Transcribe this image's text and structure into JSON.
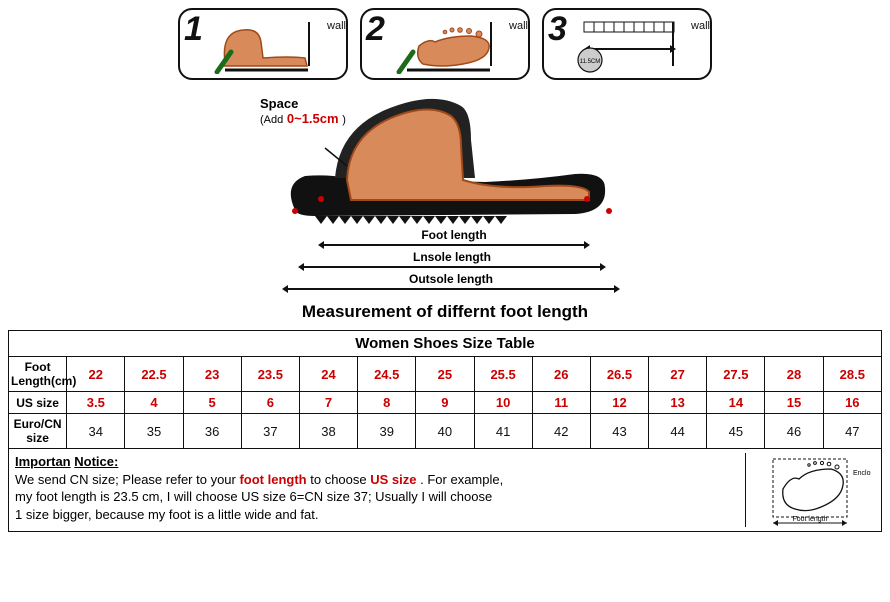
{
  "steps": {
    "step1_num": "1",
    "step2_num": "2",
    "step3_num": "3",
    "wall_label": "wall",
    "step3_measure": "11.5CM"
  },
  "space_label": {
    "title": "Space",
    "add_prefix": "(Add",
    "value": "0~1.5cm",
    "suffix": ")"
  },
  "dim_labels": {
    "foot": "Foot length",
    "insole": "Lnsole length",
    "outsole": "Outsole length"
  },
  "measurement_title": "Measurement of differnt foot length",
  "table": {
    "title": "Women Shoes Size Table",
    "rows": [
      {
        "label": "Foot Length(cm)",
        "style": "red",
        "values": [
          "22",
          "22.5",
          "23",
          "23.5",
          "24",
          "24.5",
          "25",
          "25.5",
          "26",
          "26.5",
          "27",
          "27.5",
          "28",
          "28.5"
        ]
      },
      {
        "label": "US size",
        "style": "red",
        "values": [
          "3.5",
          "4",
          "5",
          "6",
          "7",
          "8",
          "9",
          "10",
          "11",
          "12",
          "13",
          "14",
          "15",
          "16"
        ]
      },
      {
        "label": "Euro/CN size",
        "style": "black",
        "values": [
          "34",
          "35",
          "36",
          "37",
          "38",
          "39",
          "40",
          "41",
          "42",
          "43",
          "44",
          "45",
          "46",
          "47"
        ]
      }
    ]
  },
  "notice": {
    "heading_prefix": "Importan",
    "heading_suffix": "Notice:",
    "line1_a": "We send CN size; Please refer to your ",
    "line1_red1": "foot length",
    "line1_b": " to choose ",
    "line1_red2": "US size",
    "line1_c": ". For example,",
    "line2": "my foot length is 23.5 cm, I will choose US size 6=CN size 37; Usually I will choose",
    "line3": "1 size bigger, because my foot is a little wide and fat.",
    "fig_enclose": "Enclose",
    "fig_foot": "Foot length"
  },
  "colors": {
    "accent": "#c00",
    "border": "#111",
    "foot_fill": "#d98a5a",
    "foot_outline": "#a04a1a",
    "step3_circle_fill": "#cccccc"
  }
}
